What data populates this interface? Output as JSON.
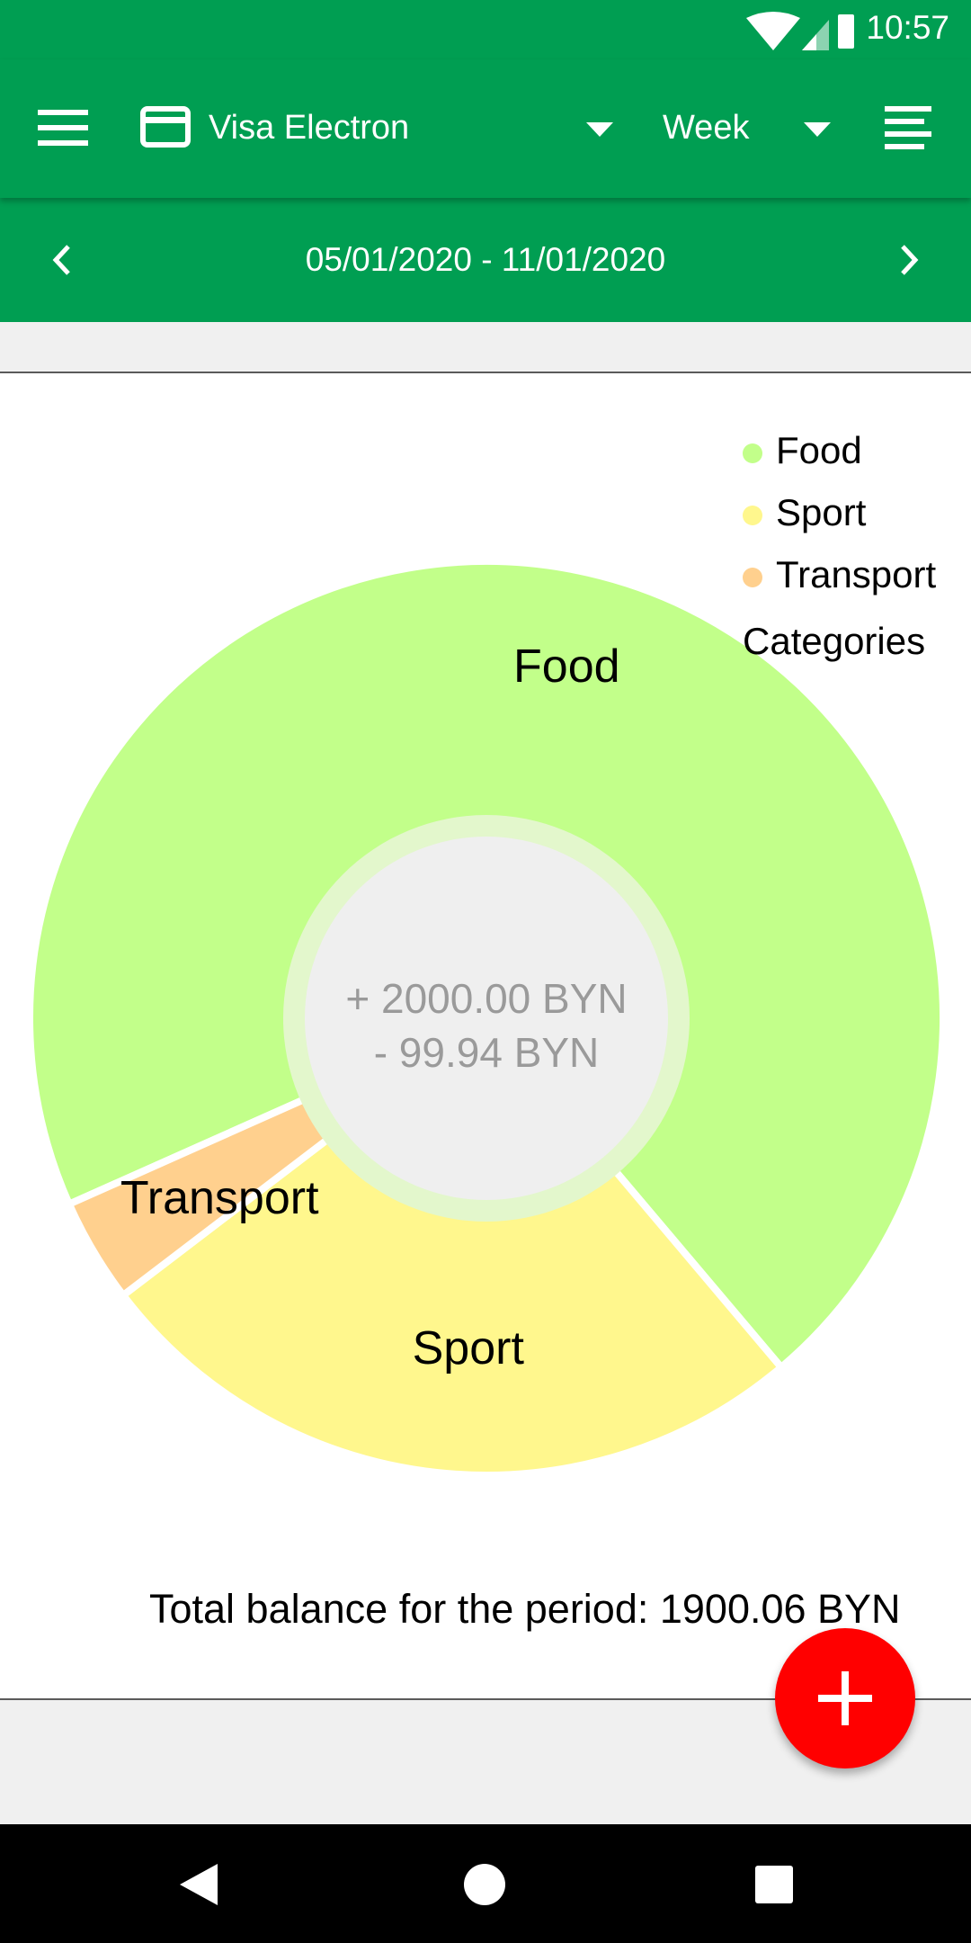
{
  "status_bar": {
    "time": "10:57",
    "icons": [
      "wifi-icon",
      "signal-icon",
      "battery-charging-icon"
    ]
  },
  "app_bar": {
    "menu_icon": "menu-icon",
    "account_icon": "credit-card-icon",
    "account_name": "Visa Electron",
    "period": "Week",
    "list_icon": "list-icon"
  },
  "date_bar": {
    "range": "05/01/2020 - 11/01/2020",
    "prev_icon": "chevron-left-icon",
    "next_icon": "chevron-right-icon"
  },
  "legend": {
    "items": [
      "Food",
      "Sport",
      "Transport"
    ],
    "title": "Categories"
  },
  "chart_data": {
    "type": "pie",
    "categories": [
      "Food",
      "Sport",
      "Transport"
    ],
    "values": [
      70.5,
      25.8,
      3.7
    ],
    "colors": [
      "#c2ff8a",
      "#fff78d",
      "#ffd08e"
    ],
    "legend_title": "Categories",
    "legend_position": "top-right",
    "center_income": "+ 2000.00 BYN",
    "center_expense": "- 99.94 BYN"
  },
  "summary": {
    "total_balance": "Total balance for the period: 1900.06 BYN"
  },
  "fab": {
    "icon": "plus-icon"
  },
  "nav_bar": {
    "icons": [
      "back-icon",
      "home-icon",
      "recents-icon"
    ]
  },
  "colors": {
    "primary": "#009e52",
    "fab": "#ff0000",
    "background": "#f0f0f0"
  }
}
